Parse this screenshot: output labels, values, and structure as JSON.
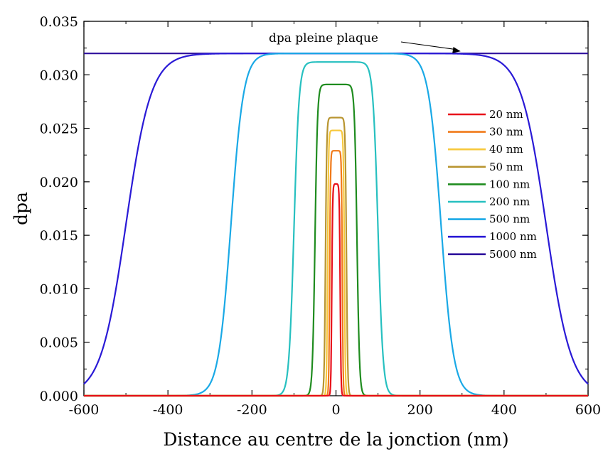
{
  "chart_data": {
    "type": "line",
    "title": "",
    "xlabel": "Distance au centre de la jonction (nm)",
    "ylabel": "dpa",
    "xlim": [
      -600,
      600
    ],
    "ylim": [
      0,
      0.035
    ],
    "x_ticks": [
      "-600",
      "-400",
      "-200",
      "0",
      "200",
      "400",
      "600"
    ],
    "y_ticks": [
      "0.000",
      "0.005",
      "0.010",
      "0.015",
      "0.020",
      "0.025",
      "0.030",
      "0.035"
    ],
    "grid": false,
    "legend_position": "right",
    "annotation": {
      "text": "dpa pleine plaque",
      "points_to": [
        300,
        0.032
      ]
    },
    "series": [
      {
        "name": "20 nm",
        "color": "#e8101a",
        "peak": 0.0198,
        "half_width": 10
      },
      {
        "name": "30 nm",
        "color": "#f07a1a",
        "peak": 0.0229,
        "half_width": 15
      },
      {
        "name": "40 nm",
        "color": "#f7c83c",
        "peak": 0.0248,
        "half_width": 20
      },
      {
        "name": "50 nm",
        "color": "#b89530",
        "peak": 0.026,
        "half_width": 25
      },
      {
        "name": "100 nm",
        "color": "#1f8c1f",
        "peak": 0.0291,
        "half_width": 50
      },
      {
        "name": "200 nm",
        "color": "#27c0c0",
        "peak": 0.0312,
        "half_width": 100
      },
      {
        "name": "500 nm",
        "color": "#1aa9e6",
        "peak": 0.032,
        "half_width": 250
      },
      {
        "name": "1000 nm",
        "color": "#2a1ad6",
        "peak": 0.032,
        "half_width": 500
      },
      {
        "name": "5000 nm",
        "color": "#2e0f9c",
        "peak": 0.032,
        "half_width": 2500
      }
    ]
  }
}
